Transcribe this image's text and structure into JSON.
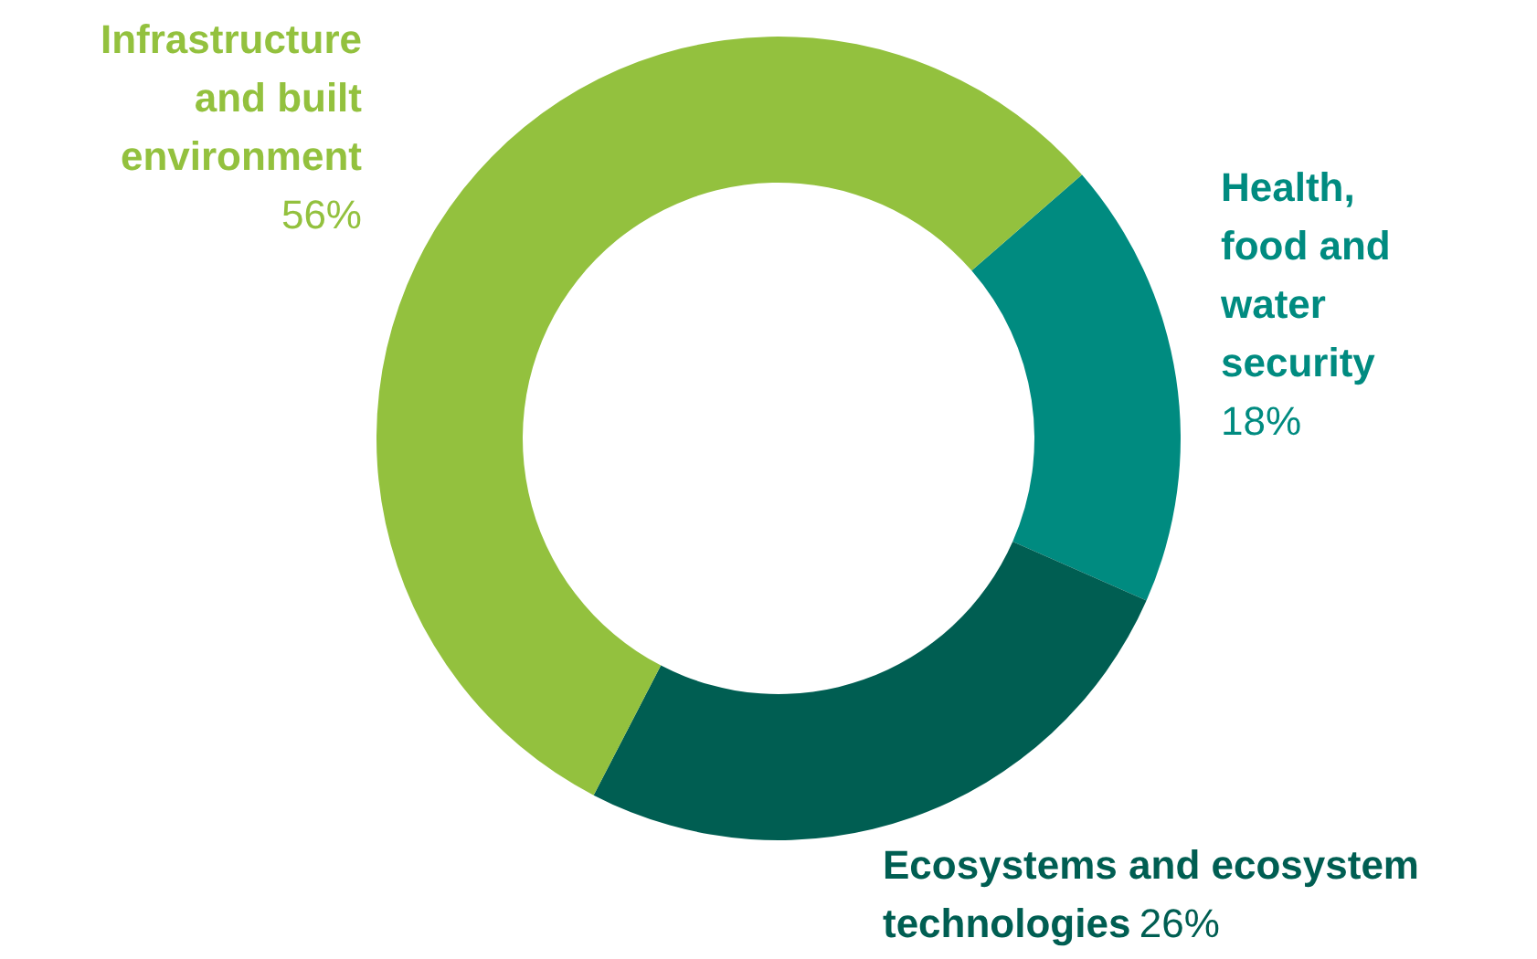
{
  "chart_data": {
    "type": "donut",
    "categories": [
      "Health, food and water security",
      "Ecosystems and ecosystem technologies",
      "Infrastructure and built environment"
    ],
    "values": [
      18,
      26,
      56
    ],
    "colors": [
      "#008b80",
      "#005e52",
      "#93c13e"
    ],
    "value_labels": [
      "18%",
      "26%",
      "56%"
    ]
  }
}
